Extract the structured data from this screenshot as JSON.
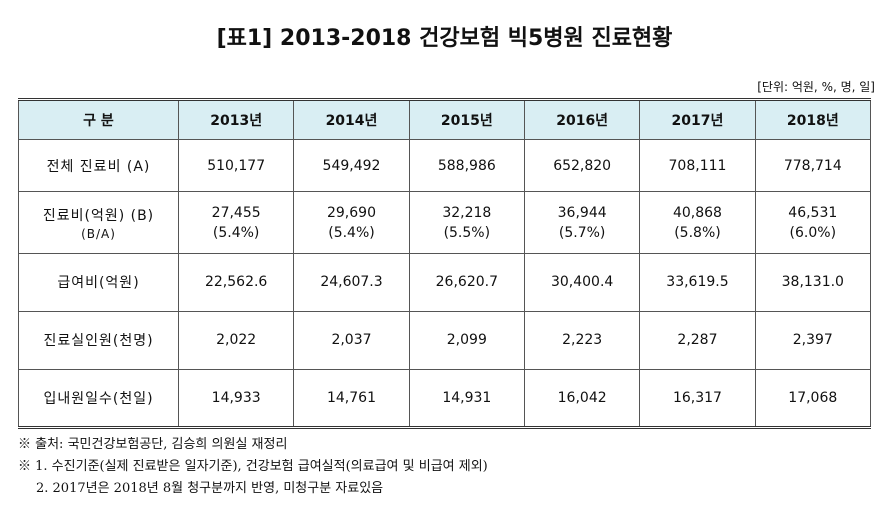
{
  "title": "[표1] 2013-2018 건강보험 빅5병원 진료현황",
  "unit": "[단위: 억원, %, 명, 일]",
  "table": {
    "header": [
      "구 분",
      "2013년",
      "2014년",
      "2015년",
      "2016년",
      "2017년",
      "2018년"
    ],
    "rows": [
      {
        "label": "전체 진료비 (A)",
        "values": [
          "510,177",
          "549,492",
          "588,986",
          "652,820",
          "708,111",
          "778,714"
        ]
      },
      {
        "label": "진료비(억원) (B)",
        "sublabel": "(B/A)",
        "values": [
          "27,455",
          "29,690",
          "32,218",
          "36,944",
          "40,868",
          "46,531"
        ],
        "percents": [
          "(5.4%)",
          "(5.4%)",
          "(5.5%)",
          "(5.7%)",
          "(5.8%)",
          "(6.0%)"
        ]
      },
      {
        "label": "급여비(억원)",
        "values": [
          "22,562.6",
          "24,607.3",
          "26,620.7",
          "30,400.4",
          "33,619.5",
          "38,131.0"
        ]
      },
      {
        "label": "진료실인원(천명)",
        "values": [
          "2,022",
          "2,037",
          "2,099",
          "2,223",
          "2,287",
          "2,397"
        ]
      },
      {
        "label": "입내원일수(천일)",
        "values": [
          "14,933",
          "14,761",
          "14,931",
          "16,042",
          "16,317",
          "17,068"
        ]
      }
    ]
  },
  "notes": [
    "※ 출처: 국민건강보험공단, 김승희 의원실 재정리",
    "※ 1. 수진기준(실제 진료받은 일자기준), 건강보험 급여실적(의료급여 및 비급여 제외)",
    "2. 2017년은 2018년 8월 청구분까지 반영, 미청구분 자료있음"
  ]
}
